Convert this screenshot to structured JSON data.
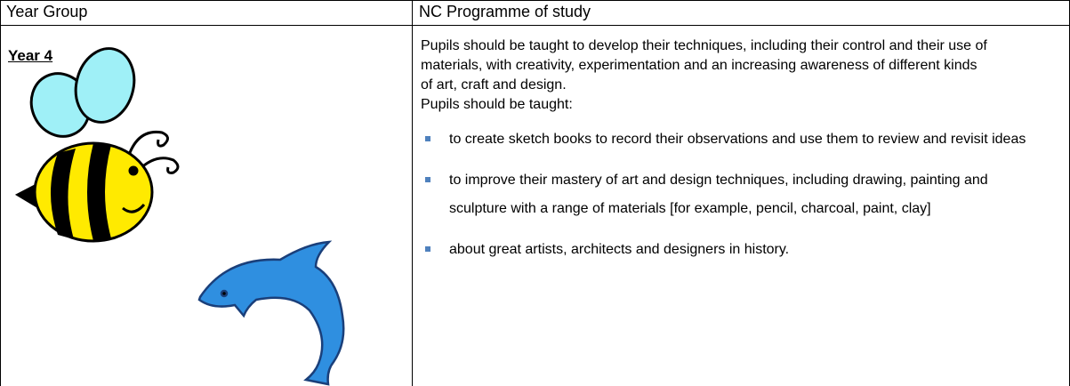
{
  "table": {
    "header": [
      "Year Group",
      "NC Programme of study"
    ],
    "rows": [
      {
        "year": "Year 4",
        "intro": "Pupils should be taught to develop their techniques, including their control and their use of materials, with creativity, experimentation and an increasing awareness of different kinds of art, craft and design.",
        "lead": "Pupils should be taught:",
        "bullets": [
          "to create sketch books to record their observations and use them to review and revisit ideas",
          "to improve their mastery of art and design techniques, including drawing, painting and sculpture with a range of materials [for example, pencil, charcoal, paint, clay]",
          "about great artists, architects and designers in history."
        ]
      }
    ]
  }
}
